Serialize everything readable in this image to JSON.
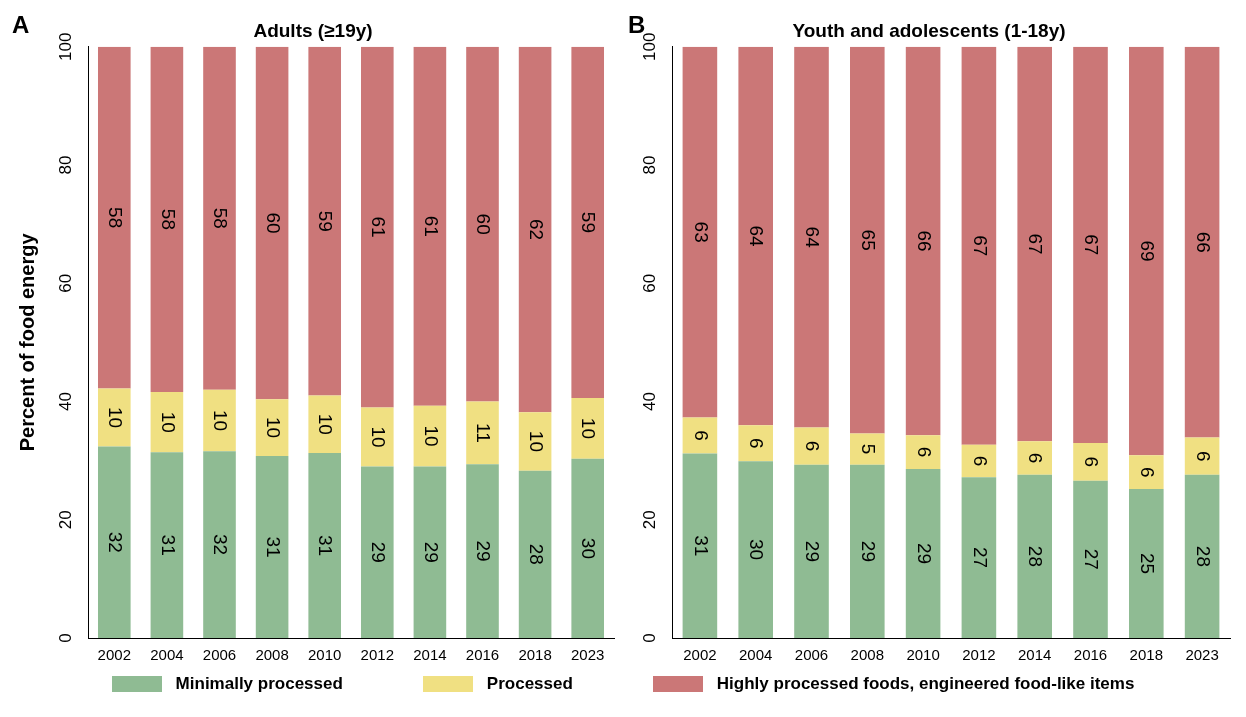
{
  "chart_data": [
    {
      "type": "bar",
      "title": "Adults (≥19y)",
      "ylabel": "Percent of food energy",
      "annotations": [
        "A"
      ],
      "stacked": true,
      "legend": "bottom",
      "categories": [
        "2002",
        "2004",
        "2006",
        "2008",
        "2010",
        "2012",
        "2014",
        "2016",
        "2018",
        "2023"
      ],
      "ylim": [
        0,
        100
      ],
      "yticks": [
        0,
        20,
        40,
        60,
        80,
        100
      ],
      "grid": false,
      "series": [
        {
          "name": "Minimally processed",
          "color": "#8fbb93",
          "values": [
            32.4,
            31.4,
            31.6,
            30.8,
            31.3,
            29,
            29,
            29.4,
            28.3,
            30.3
          ],
          "value_labels": [
            "32",
            "31",
            "32",
            "31",
            "31",
            "29",
            "29",
            "29",
            "28",
            "30"
          ]
        },
        {
          "name": "Processed",
          "color": "#f0e082",
          "values": [
            9.8,
            10.2,
            10.4,
            9.6,
            9.7,
            10,
            10.3,
            10.6,
            9.9,
            10.3
          ],
          "value_labels": [
            "10",
            "10",
            "10",
            "10",
            "10",
            "10",
            "10",
            "11",
            "10",
            "10"
          ]
        },
        {
          "name": "Highly processed foods, engineered food-like items",
          "color": "#cb7777",
          "values": [
            57.8,
            58.4,
            58,
            59.6,
            59,
            61,
            60.7,
            60,
            61.8,
            59.4
          ],
          "value_labels": [
            "58",
            "58",
            "58",
            "60",
            "59",
            "61",
            "61",
            "60",
            "62",
            "59"
          ]
        }
      ]
    },
    {
      "type": "bar",
      "title": "Youth and adolescents (1-18y)",
      "annotations": [
        "B"
      ],
      "stacked": true,
      "categories": [
        "2002",
        "2004",
        "2006",
        "2008",
        "2010",
        "2012",
        "2014",
        "2016",
        "2018",
        "2023"
      ],
      "ylim": [
        0,
        100
      ],
      "yticks": [
        0,
        20,
        40,
        60,
        80,
        100
      ],
      "grid": false,
      "series": [
        {
          "color": "#8fbb93",
          "values": [
            31.2,
            29.9,
            29.3,
            29.3,
            28.6,
            27.2,
            27.6,
            26.6,
            25.2,
            27.6
          ],
          "value_labels": [
            "31",
            "30",
            "29",
            "29",
            "29",
            "27",
            "28",
            "27",
            "25",
            "28"
          ]
        },
        {
          "color": "#f0e082",
          "values": [
            6.1,
            6.1,
            6.3,
            5.3,
            5.7,
            5.5,
            5.7,
            6.4,
            5.7,
            6.3
          ],
          "value_labels": [
            "6",
            "6",
            "6",
            "5",
            "6",
            "6",
            "6",
            "6",
            "6",
            "6"
          ]
        },
        {
          "color": "#cb7777",
          "values": [
            62.7,
            64,
            64.4,
            65.4,
            65.7,
            67.3,
            66.7,
            67,
            69.1,
            66.1
          ],
          "value_labels": [
            "63",
            "64",
            "64",
            "65",
            "66",
            "67",
            "67",
            "67",
            "69",
            "66"
          ]
        }
      ]
    }
  ]
}
